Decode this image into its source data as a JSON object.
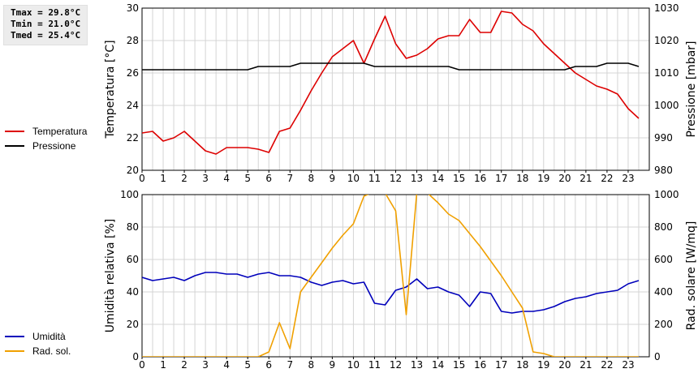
{
  "stats": {
    "tmax": "Tmax = 29.8°C",
    "tmin": "Tmin = 21.0°C",
    "tmed": "Tmed = 25.4°C"
  },
  "chart_data": [
    {
      "type": "line",
      "x_range": [
        0,
        24
      ],
      "x_ticks": [
        "0",
        "1",
        "2",
        "3",
        "4",
        "5",
        "6",
        "7",
        "8",
        "9",
        "10",
        "11",
        "12",
        "13",
        "14",
        "15",
        "16",
        "17",
        "18",
        "19",
        "20",
        "21",
        "22",
        "23"
      ],
      "ylabel_left": "Temperatura [°C]",
      "ylabel_right": "Pressione [mbar]",
      "ylim_left": [
        20,
        30
      ],
      "yticks_left": [
        "20",
        "22",
        "24",
        "26",
        "28",
        "30"
      ],
      "ylim_right": [
        980,
        1030
      ],
      "yticks_right": [
        "980",
        "990",
        "1000",
        "1010",
        "1020",
        "1030"
      ],
      "grid": true,
      "series": [
        {
          "name": "Temperatura",
          "color": "#dd0000",
          "axis": "left",
          "x": [
            0,
            0.5,
            1,
            1.5,
            2,
            2.5,
            3,
            3.5,
            4,
            4.5,
            5,
            5.5,
            6,
            6.5,
            7,
            7.5,
            8,
            8.5,
            9,
            9.5,
            10,
            10.5,
            11,
            11.5,
            12,
            12.5,
            13,
            13.5,
            14,
            14.5,
            15,
            15.5,
            16,
            16.5,
            17,
            17.5,
            18,
            18.5,
            19,
            19.5,
            20,
            20.5,
            21,
            21.5,
            22,
            22.5,
            23,
            23.5
          ],
          "values": [
            22.3,
            22.4,
            21.8,
            22.0,
            22.4,
            21.8,
            21.2,
            21.0,
            21.4,
            21.4,
            21.4,
            21.3,
            21.1,
            22.4,
            22.6,
            23.7,
            24.9,
            26.0,
            27.0,
            27.5,
            28.0,
            26.6,
            28.1,
            29.5,
            27.8,
            26.9,
            27.1,
            27.5,
            28.1,
            28.3,
            28.3,
            29.3,
            28.5,
            28.5,
            29.8,
            29.7,
            29.0,
            28.6,
            27.8,
            27.2,
            26.6,
            26.0,
            25.6,
            25.2,
            25.0,
            24.7,
            23.8,
            23.2
          ]
        },
        {
          "name": "Pressione",
          "color": "#000000",
          "axis": "right",
          "x": [
            0,
            0.5,
            1,
            1.5,
            2,
            2.5,
            3,
            3.5,
            4,
            4.5,
            5,
            5.5,
            6,
            6.5,
            7,
            7.5,
            8,
            8.5,
            9,
            9.5,
            10,
            10.5,
            11,
            11.5,
            12,
            12.5,
            13,
            13.5,
            14,
            14.5,
            15,
            15.5,
            16,
            16.5,
            17,
            17.5,
            18,
            18.5,
            19,
            19.5,
            20,
            20.5,
            21,
            21.5,
            22,
            22.5,
            23,
            23.5
          ],
          "values": [
            1011,
            1011,
            1011,
            1011,
            1011,
            1011,
            1011,
            1011,
            1011,
            1011,
            1011,
            1012,
            1012,
            1012,
            1012,
            1013,
            1013,
            1013,
            1013,
            1013,
            1013,
            1013,
            1012,
            1012,
            1012,
            1012,
            1012,
            1012,
            1012,
            1012,
            1011,
            1011,
            1011,
            1011,
            1011,
            1011,
            1011,
            1011,
            1011,
            1011,
            1011,
            1012,
            1012,
            1012,
            1013,
            1013,
            1013,
            1012
          ]
        }
      ]
    },
    {
      "type": "line",
      "x_range": [
        0,
        24
      ],
      "x_ticks": [
        "0",
        "1",
        "2",
        "3",
        "4",
        "5",
        "6",
        "7",
        "8",
        "9",
        "10",
        "11",
        "12",
        "13",
        "14",
        "15",
        "16",
        "17",
        "18",
        "19",
        "20",
        "21",
        "22",
        "23"
      ],
      "ylabel_left": "Umidità relativa [%]",
      "ylabel_right": "Rad. solare [W/mq]",
      "ylim_left": [
        0,
        100
      ],
      "yticks_left": [
        "0",
        "20",
        "40",
        "60",
        "80",
        "100"
      ],
      "ylim_right": [
        0,
        1000
      ],
      "yticks_right": [
        "0",
        "200",
        "400",
        "600",
        "800",
        "1000"
      ],
      "grid": true,
      "series": [
        {
          "name": "Umidità",
          "color": "#0000bb",
          "axis": "left",
          "x": [
            0,
            0.5,
            1,
            1.5,
            2,
            2.5,
            3,
            3.5,
            4,
            4.5,
            5,
            5.5,
            6,
            6.5,
            7,
            7.5,
            8,
            8.5,
            9,
            9.5,
            10,
            10.5,
            11,
            11.5,
            12,
            12.5,
            13,
            13.5,
            14,
            14.5,
            15,
            15.5,
            16,
            16.5,
            17,
            17.5,
            18,
            18.5,
            19,
            19.5,
            20,
            20.5,
            21,
            21.5,
            22,
            22.5,
            23,
            23.5
          ],
          "values": [
            49,
            47,
            48,
            49,
            47,
            50,
            52,
            52,
            51,
            51,
            49,
            51,
            52,
            50,
            50,
            49,
            46,
            44,
            46,
            47,
            45,
            46,
            33,
            32,
            41,
            43,
            48,
            42,
            43,
            40,
            38,
            31,
            40,
            39,
            28,
            27,
            28,
            28,
            29,
            31,
            34,
            36,
            37,
            39,
            40,
            41,
            45,
            47
          ]
        },
        {
          "name": "Rad. sol.",
          "color": "#f0a000",
          "axis": "right",
          "x": [
            0,
            1,
            2,
            3,
            4,
            5,
            5.5,
            6,
            6.5,
            7,
            7.5,
            8,
            8.5,
            9,
            9.5,
            10,
            10.5,
            11,
            11.5,
            12,
            12.5,
            13,
            13.5,
            14,
            14.5,
            15,
            15.5,
            16,
            16.5,
            17,
            17.5,
            18,
            18.5,
            19,
            19.5,
            20,
            21,
            22,
            23,
            23.5
          ],
          "values": [
            0,
            0,
            0,
            0,
            0,
            0,
            0,
            30,
            210,
            50,
            400,
            490,
            580,
            670,
            750,
            820,
            990,
            1020,
            1010,
            900,
            260,
            1010,
            1010,
            950,
            880,
            840,
            760,
            680,
            590,
            500,
            400,
            300,
            30,
            20,
            0,
            0,
            0,
            0,
            0,
            0
          ]
        }
      ]
    }
  ]
}
